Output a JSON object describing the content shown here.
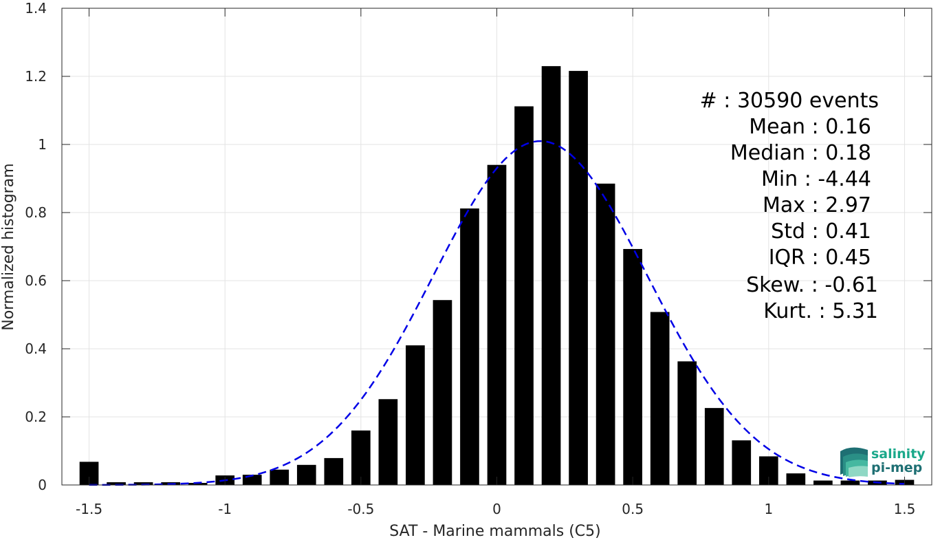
{
  "chart_data": {
    "type": "bar",
    "xlabel": "SAT - Marine mammals (C5)",
    "ylabel": "Normalized histogram",
    "xlim": [
      -1.6,
      1.6
    ],
    "ylim": [
      0,
      1.4
    ],
    "x_ticks": [
      -1.5,
      -1,
      -0.5,
      0,
      0.5,
      1,
      1.5
    ],
    "x_tick_labels": [
      "-1.5",
      "-1",
      "-0.5",
      "0",
      "0.5",
      "1",
      "1.5"
    ],
    "y_ticks": [
      0,
      0.2,
      0.4,
      0.6,
      0.8,
      1,
      1.2,
      1.4
    ],
    "y_tick_labels": [
      "0",
      "0.2",
      "0.4",
      "0.6",
      "0.8",
      "1",
      "1.2",
      "1.4"
    ],
    "grid": true,
    "bar_color": "#000000",
    "bar_width": 0.07,
    "series": [
      {
        "x": [
          -1.5,
          -1.4,
          -1.3,
          -1.2,
          -1.1,
          -1.0,
          -0.9,
          -0.8,
          -0.7,
          -0.6,
          -0.5,
          -0.4,
          -0.3,
          -0.2,
          -0.1,
          0.0,
          0.1,
          0.2,
          0.3,
          0.4,
          0.5,
          0.6,
          0.7,
          0.8,
          0.9,
          1.0,
          1.1,
          1.2,
          1.3,
          1.4,
          1.5
        ],
        "values": [
          0.068,
          0.008,
          0.008,
          0.008,
          0.006,
          0.028,
          0.03,
          0.045,
          0.059,
          0.079,
          0.16,
          0.252,
          0.41,
          0.543,
          0.812,
          0.94,
          1.112,
          1.23,
          1.216,
          0.885,
          0.693,
          0.508,
          0.363,
          0.226,
          0.131,
          0.084,
          0.034,
          0.013,
          0.013,
          0.013,
          0.015
        ]
      }
    ],
    "fit_curve": {
      "style": "dashed",
      "color": "#0000e6",
      "mean": 0.16,
      "std": 0.395,
      "peak": 1.01
    },
    "legend": "none",
    "annotations": {
      "stats_lines": [
        "#  : 30590 events",
        "Mean : 0.16",
        "Median : 0.18",
        "Min : -4.44",
        "Max : 2.97",
        "Std : 0.41",
        "IQR : 0.45",
        "Skew. : -0.61",
        "Kurt. : 5.31"
      ]
    }
  },
  "logo": {
    "line1": "salinity",
    "line2": "pi-mep",
    "color1": "#1aa88a",
    "color2": "#1e6f73"
  }
}
